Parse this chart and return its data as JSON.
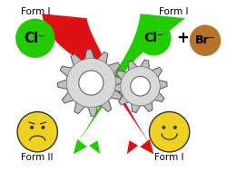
{
  "bg_color": "#ffffff",
  "form_i_label_left": "Form I",
  "form_i_label_right": "Form I",
  "form_ii_label": "Form II",
  "form_i_label_bottom": "Form I",
  "cl_minus": "Cl⁻",
  "br_minus": "Br⁻",
  "plus_sign": "+",
  "cl_ball_color": "#22cc00",
  "br_ball_color": "#b8732a",
  "smiley_color": "#f0d020",
  "smiley_outline": "#333333",
  "gear_color": "#c0c0c0",
  "gear_outline": "#555555",
  "red_ribbon": "#dd1111",
  "green_ribbon": "#22cc00",
  "label_fontsize": 7.5,
  "ion_fontsize": 11,
  "figsize": [
    2.5,
    1.89
  ],
  "dpi": 100
}
